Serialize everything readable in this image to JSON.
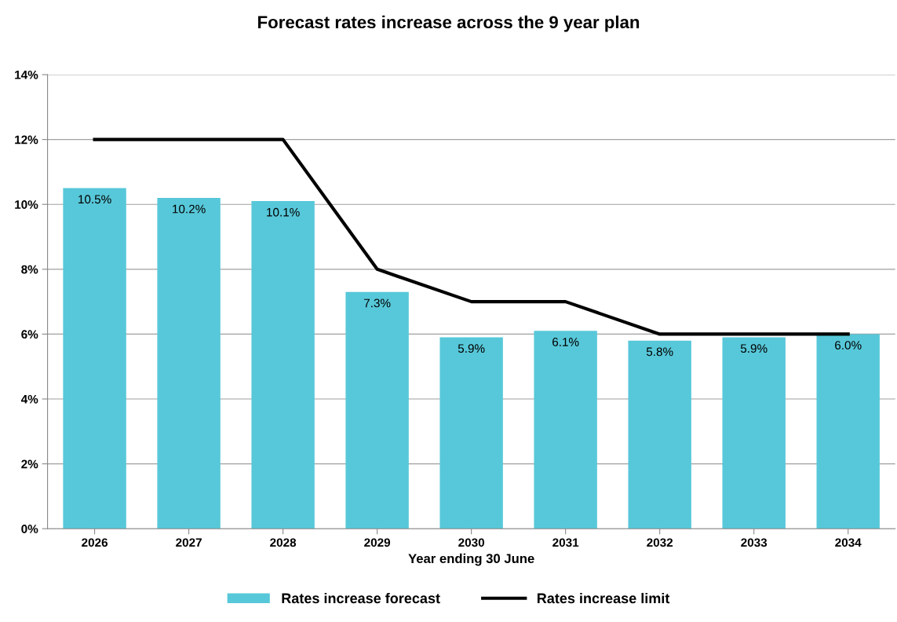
{
  "chart_data": {
    "type": "bar",
    "title": "Forecast rates increase across the 9 year plan",
    "xlabel": "Year ending 30 June",
    "categories": [
      "2026",
      "2027",
      "2028",
      "2029",
      "2030",
      "2031",
      "2032",
      "2033",
      "2034"
    ],
    "series": [
      {
        "name": "Rates increase forecast",
        "color": "#57c8d9",
        "values": [
          10.5,
          10.2,
          10.1,
          7.3,
          5.9,
          6.1,
          5.8,
          5.9,
          6.0
        ],
        "value_labels": [
          "10.5%",
          "10.2%",
          "10.1%",
          "7.3%",
          "5.9%",
          "6.1%",
          "5.8%",
          "5.9%",
          "6.0%"
        ]
      },
      {
        "name": "Rates increase limit",
        "type": "line",
        "color": "#000000",
        "values": [
          12,
          12,
          12,
          8,
          7,
          7,
          6,
          6,
          6
        ]
      }
    ],
    "ylim": [
      0,
      14
    ],
    "yticks": [
      {
        "value": 0,
        "label": "0%"
      },
      {
        "value": 2,
        "label": "2%"
      },
      {
        "value": 4,
        "label": "4%"
      },
      {
        "value": 6,
        "label": "6%"
      },
      {
        "value": 8,
        "label": "8%"
      },
      {
        "value": 10,
        "label": "10%"
      },
      {
        "value": 12,
        "label": "12%"
      },
      {
        "value": 14,
        "label": "14%"
      }
    ],
    "grid": "y",
    "legend": "bottom",
    "marker": "none",
    "line_style": "solid"
  }
}
